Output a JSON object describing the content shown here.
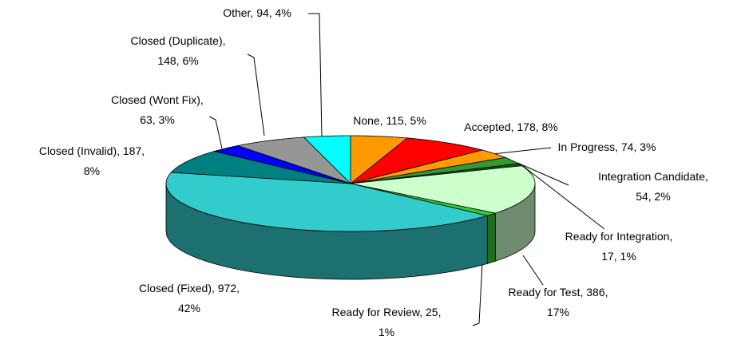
{
  "chart_data": {
    "type": "pie",
    "labels": [
      "None, 115, 5%",
      "Accepted, 178, 8%",
      "In Progress, 74, 3%",
      "Integration Candidate,\n54, 2%",
      "Ready for Integration,\n17, 1%",
      "Ready for Test, 386,\n17%",
      "Ready for Review, 25,\n1%",
      "Closed (Fixed), 972,\n42%",
      "Closed (Invalid), 187,\n8%",
      "Closed (Wont Fix),\n63, 3%",
      "Closed (Duplicate),\n148, 6%",
      "Other, 94, 4%"
    ],
    "values": [
      115,
      178,
      74,
      54,
      17,
      386,
      25,
      972,
      187,
      63,
      148,
      94
    ],
    "colors": [
      "#ff9900",
      "#ff0000",
      "#ff9900",
      "#339933",
      "#006600",
      "#ccffcc",
      "#33cc33",
      "#33cccc",
      "#008080",
      "#0000ff",
      "#969696",
      "#00ffff"
    ]
  }
}
